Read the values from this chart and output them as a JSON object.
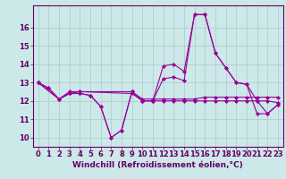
{
  "x": [
    0,
    1,
    2,
    3,
    4,
    5,
    6,
    7,
    8,
    9,
    10,
    11,
    12,
    13,
    14,
    15,
    16,
    17,
    18,
    19,
    20,
    21,
    22,
    23
  ],
  "line1": [
    13.0,
    12.7,
    12.1,
    12.4,
    12.4,
    12.3,
    11.7,
    10.0,
    10.4,
    12.5,
    12.0,
    12.0,
    13.9,
    14.0,
    13.6,
    16.7,
    16.7,
    14.6,
    13.8,
    13.0,
    12.9,
    12.0,
    11.3,
    11.8
  ],
  "line2": [
    13.0,
    12.7,
    12.1,
    12.4,
    12.4,
    12.3,
    11.7,
    10.0,
    10.4,
    12.5,
    12.0,
    12.0,
    13.2,
    13.3,
    13.1,
    16.7,
    16.7,
    14.6,
    13.8,
    13.0,
    12.9,
    11.3,
    11.3,
    11.8
  ],
  "line3": [
    13.0,
    null,
    12.1,
    12.4,
    12.5,
    null,
    null,
    null,
    null,
    12.4,
    12.0,
    12.0,
    12.0,
    12.0,
    12.0,
    12.0,
    12.0,
    12.0,
    12.0,
    12.0,
    12.0,
    12.0,
    12.0,
    11.9
  ],
  "line4": [
    13.0,
    null,
    12.1,
    12.5,
    12.5,
    null,
    null,
    null,
    null,
    12.5,
    12.1,
    12.1,
    12.1,
    12.1,
    12.1,
    12.1,
    12.2,
    12.2,
    12.2,
    12.2,
    12.2,
    12.2,
    12.2,
    12.2
  ],
  "ylim": [
    9.5,
    17.2
  ],
  "yticks": [
    10,
    11,
    12,
    13,
    14,
    15,
    16
  ],
  "xticks": [
    0,
    1,
    2,
    3,
    4,
    5,
    6,
    7,
    8,
    9,
    10,
    11,
    12,
    13,
    14,
    15,
    16,
    17,
    18,
    19,
    20,
    21,
    22,
    23
  ],
  "xlabel": "Windchill (Refroidissement éolien,°C)",
  "line_color": "#990099",
  "bg_color": "#cce8e8",
  "grid_color": "#aacaca",
  "marker": "D",
  "markersize": 2.0,
  "linewidth": 0.8,
  "xlabel_fontsize": 6.5,
  "tick_fontsize": 6.0
}
